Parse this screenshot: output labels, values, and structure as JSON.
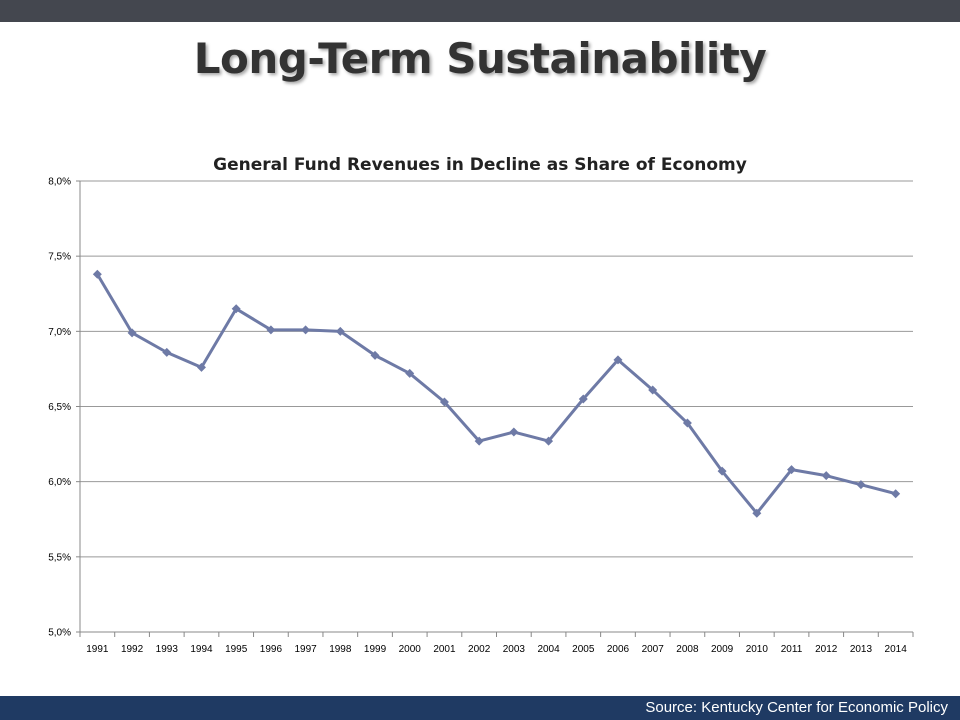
{
  "slide": {
    "title": "Long-Term Sustainability",
    "source": "Source: Kentucky Center for Economic Policy"
  },
  "colors": {
    "top_bar": "#44474f",
    "footer_bar": "#1f3a63",
    "series_line": "#6e7aa6",
    "grid": "#999999"
  },
  "chart_data": {
    "type": "line",
    "title": "General Fund Revenues in Decline as Share of Economy",
    "xlabel": "",
    "ylabel": "",
    "ylim": [
      5.0,
      8.0
    ],
    "y_ticks": [
      "5,0%",
      "5,5%",
      "6,0%",
      "6,5%",
      "7,0%",
      "7,5%",
      "8,0%"
    ],
    "y_tick_values": [
      5.0,
      5.5,
      6.0,
      6.5,
      7.0,
      7.5,
      8.0
    ],
    "grid": true,
    "legend": "none",
    "marker": "diamond",
    "categories": [
      "1991",
      "1992",
      "1993",
      "1994",
      "1995",
      "1996",
      "1997",
      "1998",
      "1999",
      "2000",
      "2001",
      "2002",
      "2003",
      "2004",
      "2005",
      "2006",
      "2007",
      "2008",
      "2009",
      "2010",
      "2011",
      "2012",
      "2013",
      "2014"
    ],
    "series": [
      {
        "values": [
          7.38,
          6.99,
          6.86,
          6.76,
          7.15,
          7.01,
          7.01,
          7.0,
          6.84,
          6.72,
          6.53,
          6.27,
          6.33,
          6.27,
          6.55,
          6.81,
          6.61,
          6.39,
          6.07,
          5.79,
          6.08,
          6.04,
          5.98,
          5.92
        ]
      }
    ]
  }
}
